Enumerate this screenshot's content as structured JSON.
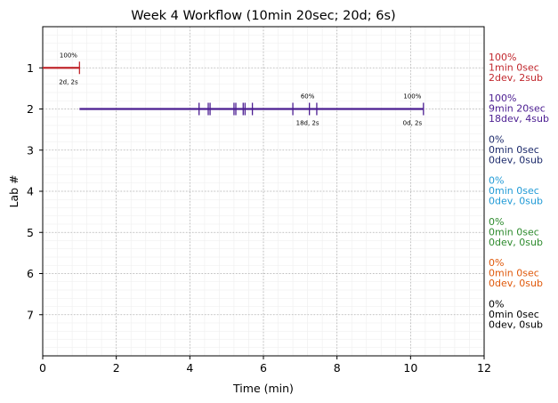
{
  "chart_data": {
    "type": "timeline",
    "title": "Week 4 Workflow (10min 20sec; 20d; 6s)",
    "xlabel": "Time (min)",
    "ylabel": "Lab #",
    "xlim": [
      0,
      12
    ],
    "ylim": [
      8,
      0
    ],
    "x_ticks": [
      "0",
      "2",
      "4",
      "6",
      "8",
      "10",
      "12"
    ],
    "y_ticks": [
      "1",
      "2",
      "3",
      "4",
      "5",
      "6",
      "7"
    ],
    "grid": true,
    "labs": [
      {
        "lab": 1,
        "color": "#c1272d",
        "start": 0,
        "end": 1.0,
        "side": [
          "100%",
          "1min 0sec",
          "2dev, 2sub"
        ],
        "ticks": [
          1.0
        ],
        "annotations": [
          {
            "x": 0.7,
            "pct": "100%",
            "sub": "2d, 2s"
          }
        ]
      },
      {
        "lab": 2,
        "color": "#4b1d91",
        "start": 1.0,
        "end": 10.35,
        "side": [
          "100%",
          "9min 20sec",
          "18dev, 4sub"
        ],
        "ticks": [
          4.25,
          4.5,
          4.55,
          5.2,
          5.25,
          5.45,
          5.5,
          5.7,
          6.8,
          7.25,
          7.45,
          10.35
        ],
        "annotations": [
          {
            "x": 7.2,
            "pct": "60%",
            "sub": "18d, 2s"
          },
          {
            "x": 10.05,
            "pct": "100%",
            "sub": "0d, 2s"
          }
        ]
      },
      {
        "lab": 3,
        "color": "#1c2a6b",
        "side": [
          "0%",
          "0min 0sec",
          "0dev, 0sub"
        ]
      },
      {
        "lab": 4,
        "color": "#1f9ad6",
        "side": [
          "0%",
          "0min 0sec",
          "0dev, 0sub"
        ]
      },
      {
        "lab": 5,
        "color": "#2e8b2e",
        "side": [
          "0%",
          "0min 0sec",
          "0dev, 0sub"
        ]
      },
      {
        "lab": 6,
        "color": "#e0590b",
        "side": [
          "0%",
          "0min 0sec",
          "0dev, 0sub"
        ]
      },
      {
        "lab": 7,
        "color": "#000000",
        "side": [
          "0%",
          "0min 0sec",
          "0dev, 0sub"
        ]
      }
    ]
  }
}
